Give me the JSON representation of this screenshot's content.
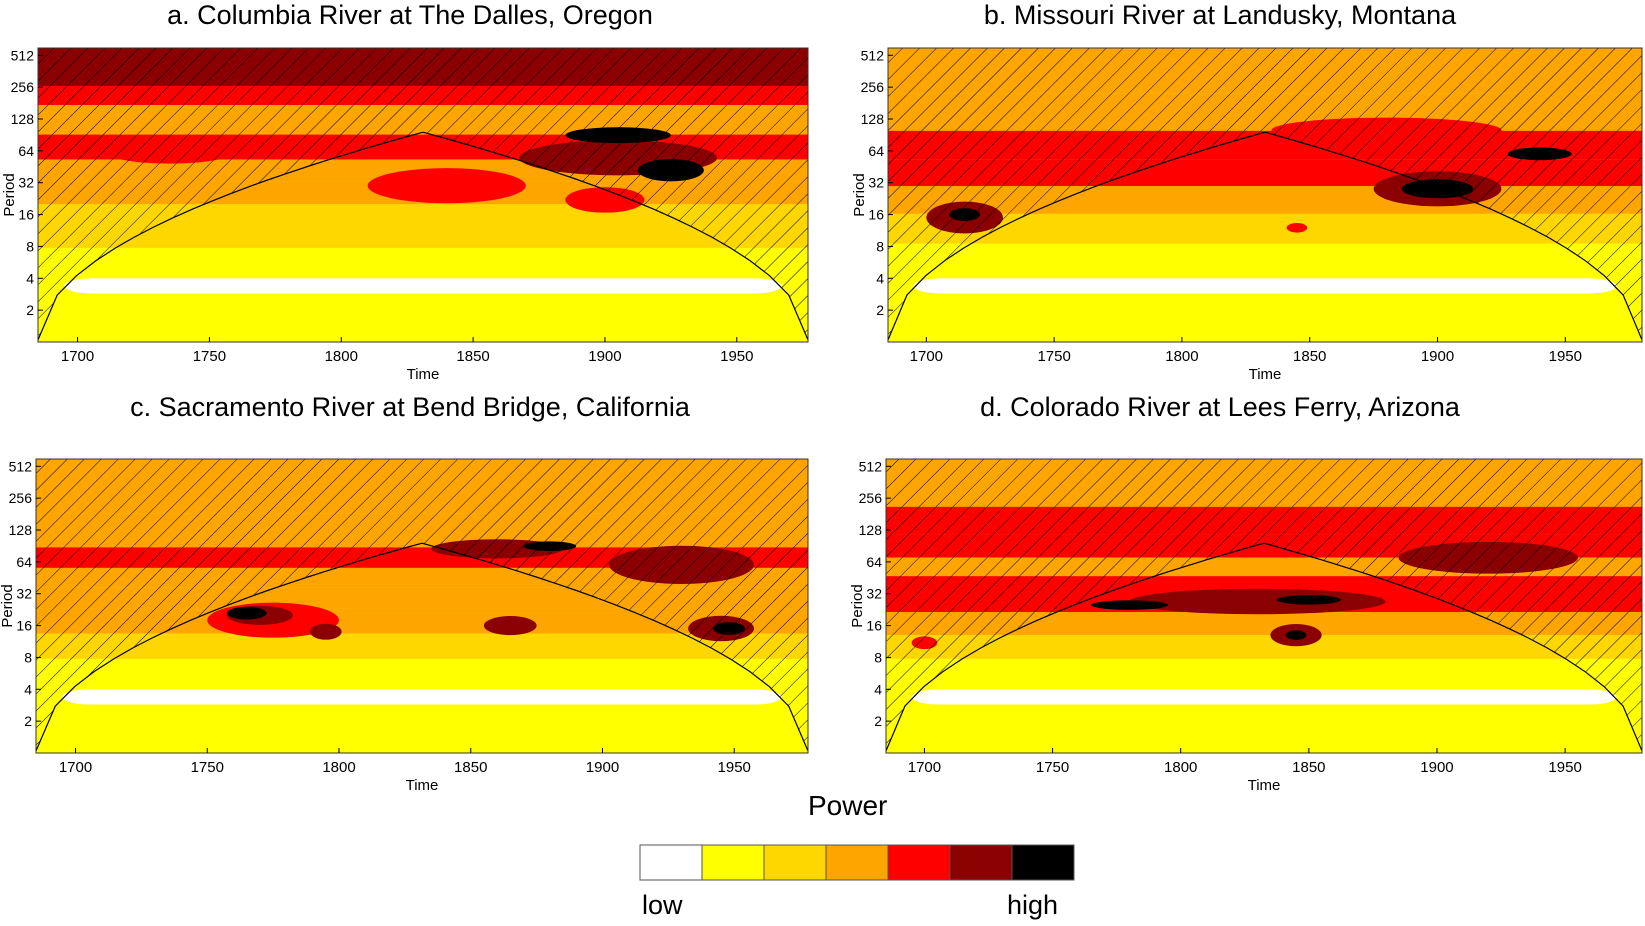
{
  "chart_data": [
    {
      "type": "heatmap",
      "title": "a. Columbia River at The Dalles, Oregon",
      "xlabel": "Time",
      "ylabel": "Period",
      "xlim": [
        1685,
        1977
      ],
      "x_ticks": [
        "1700",
        "1750",
        "1800",
        "1850",
        "1900",
        "1950"
      ],
      "y_ticks": [
        "2",
        "4",
        "8",
        "16",
        "32",
        "64",
        "128",
        "256",
        "512"
      ],
      "y_scale": "log2",
      "bands": [
        {
          "p": 300,
          "level": 5
        },
        {
          "p": 230,
          "level": 4
        },
        {
          "p": 130,
          "level": 3
        },
        {
          "p": 64,
          "level": 4
        },
        {
          "p": 44,
          "level": 3
        },
        {
          "p": 25,
          "level": 3
        },
        {
          "p": 16,
          "level": 2
        },
        {
          "p": 10,
          "level": 2
        },
        {
          "p": 6,
          "level": 1
        },
        {
          "p": 3.7,
          "level": 0
        },
        {
          "p": 1.6,
          "level": 1
        }
      ],
      "blobs": [
        {
          "x": 1735,
          "p": 64,
          "w": 50,
          "h": 0.8,
          "level": 4
        },
        {
          "x": 1840,
          "p": 30,
          "w": 60,
          "h": 1.1,
          "level": 4
        },
        {
          "x": 1900,
          "p": 22,
          "w": 30,
          "h": 0.8,
          "level": 4
        },
        {
          "x": 1905,
          "p": 55,
          "w": 75,
          "h": 1.1,
          "level": 5
        },
        {
          "x": 1925,
          "p": 42,
          "w": 25,
          "h": 0.7,
          "level": 6
        },
        {
          "x": 1905,
          "p": 90,
          "w": 40,
          "h": 0.5,
          "level": 6
        }
      ],
      "coi_peak": 96
    },
    {
      "type": "heatmap",
      "title": "b. Missouri River at Landusky, Montana",
      "xlabel": "Time",
      "ylabel": "Period",
      "xlim": [
        1685,
        1980
      ],
      "x_ticks": [
        "1700",
        "1750",
        "1800",
        "1850",
        "1900",
        "1950"
      ],
      "y_ticks": [
        "2",
        "4",
        "8",
        "16",
        "32",
        "64",
        "128",
        "256",
        "512"
      ],
      "y_scale": "log2",
      "bands": [
        {
          "p": 350,
          "level": 3
        },
        {
          "p": 140,
          "level": 3
        },
        {
          "p": 70,
          "level": 4
        },
        {
          "p": 40,
          "level": 4
        },
        {
          "p": 22,
          "level": 3
        },
        {
          "p": 12,
          "level": 2
        },
        {
          "p": 6,
          "level": 1
        },
        {
          "p": 3.7,
          "level": 0
        },
        {
          "p": 1.6,
          "level": 1
        }
      ],
      "blobs": [
        {
          "x": 1880,
          "p": 100,
          "w": 90,
          "h": 0.8,
          "level": 4
        },
        {
          "x": 1715,
          "p": 15,
          "w": 30,
          "h": 1.0,
          "level": 5
        },
        {
          "x": 1715,
          "p": 16,
          "w": 12,
          "h": 0.4,
          "level": 6
        },
        {
          "x": 1900,
          "p": 28,
          "w": 50,
          "h": 1.1,
          "level": 5
        },
        {
          "x": 1900,
          "p": 28,
          "w": 28,
          "h": 0.6,
          "level": 6
        },
        {
          "x": 1940,
          "p": 60,
          "w": 25,
          "h": 0.4,
          "level": 6
        },
        {
          "x": 1845,
          "p": 12,
          "w": 8,
          "h": 0.3,
          "level": 4
        }
      ],
      "coi_peak": 96
    },
    {
      "type": "heatmap",
      "title": "c. Sacramento River at Bend Bridge, California",
      "xlabel": "Time",
      "ylabel": "Period",
      "xlim": [
        1685,
        1978
      ],
      "x_ticks": [
        "1700",
        "1750",
        "1800",
        "1850",
        "1900",
        "1950"
      ],
      "y_ticks": [
        "2",
        "4",
        "8",
        "16",
        "32",
        "64",
        "128",
        "256",
        "512"
      ],
      "y_scale": "log2",
      "bands": [
        {
          "p": 300,
          "level": 3
        },
        {
          "p": 110,
          "level": 3
        },
        {
          "p": 70,
          "level": 4
        },
        {
          "p": 45,
          "level": 3
        },
        {
          "p": 30,
          "level": 3
        },
        {
          "p": 18,
          "level": 3
        },
        {
          "p": 10,
          "level": 2
        },
        {
          "p": 6,
          "level": 1
        },
        {
          "p": 3.7,
          "level": 0
        },
        {
          "p": 1.6,
          "level": 1
        }
      ],
      "blobs": [
        {
          "x": 1860,
          "p": 85,
          "w": 50,
          "h": 0.6,
          "level": 5
        },
        {
          "x": 1880,
          "p": 90,
          "w": 20,
          "h": 0.3,
          "level": 6
        },
        {
          "x": 1930,
          "p": 60,
          "w": 55,
          "h": 1.2,
          "level": 5
        },
        {
          "x": 1775,
          "p": 18,
          "w": 50,
          "h": 1.1,
          "level": 4
        },
        {
          "x": 1770,
          "p": 20,
          "w": 25,
          "h": 0.6,
          "level": 5
        },
        {
          "x": 1765,
          "p": 21,
          "w": 15,
          "h": 0.4,
          "level": 6
        },
        {
          "x": 1795,
          "p": 14,
          "w": 12,
          "h": 0.5,
          "level": 5
        },
        {
          "x": 1865,
          "p": 16,
          "w": 20,
          "h": 0.6,
          "level": 5
        },
        {
          "x": 1945,
          "p": 15,
          "w": 25,
          "h": 0.8,
          "level": 5
        },
        {
          "x": 1948,
          "p": 15,
          "w": 12,
          "h": 0.4,
          "level": 6
        }
      ],
      "coi_peak": 96
    },
    {
      "type": "heatmap",
      "title": "d. Colorado River at Lees Ferry, Arizona",
      "xlabel": "Time",
      "ylabel": "Period",
      "xlim": [
        1685,
        1980
      ],
      "x_ticks": [
        "1700",
        "1750",
        "1800",
        "1850",
        "1900",
        "1950"
      ],
      "y_ticks": [
        "2",
        "4",
        "8",
        "16",
        "32",
        "64",
        "128",
        "256",
        "512"
      ],
      "y_scale": "log2",
      "bands": [
        {
          "p": 300,
          "level": 3
        },
        {
          "p": 150,
          "level": 4
        },
        {
          "p": 90,
          "level": 4
        },
        {
          "p": 55,
          "level": 3
        },
        {
          "p": 40,
          "level": 4
        },
        {
          "p": 27,
          "level": 4
        },
        {
          "p": 17,
          "level": 3
        },
        {
          "p": 10,
          "level": 2
        },
        {
          "p": 6,
          "level": 1
        },
        {
          "p": 3.7,
          "level": 0
        },
        {
          "p": 1.6,
          "level": 1
        }
      ],
      "blobs": [
        {
          "x": 1920,
          "p": 70,
          "w": 70,
          "h": 1.0,
          "level": 5
        },
        {
          "x": 1830,
          "p": 27,
          "w": 100,
          "h": 0.8,
          "level": 5
        },
        {
          "x": 1780,
          "p": 25,
          "w": 30,
          "h": 0.3,
          "level": 6
        },
        {
          "x": 1850,
          "p": 28,
          "w": 25,
          "h": 0.3,
          "level": 6
        },
        {
          "x": 1845,
          "p": 13,
          "w": 20,
          "h": 0.7,
          "level": 5
        },
        {
          "x": 1845,
          "p": 13,
          "w": 8,
          "h": 0.3,
          "level": 6
        },
        {
          "x": 1700,
          "p": 11,
          "w": 10,
          "h": 0.4,
          "level": 4
        }
      ],
      "coi_peak": 96
    }
  ],
  "legend": {
    "title": "Power",
    "low_label": "low",
    "high_label": "high",
    "colors": [
      "#ffffff",
      "#ffff00",
      "#ffd700",
      "#ffa500",
      "#ff0000",
      "#8b0000",
      "#000000"
    ]
  }
}
